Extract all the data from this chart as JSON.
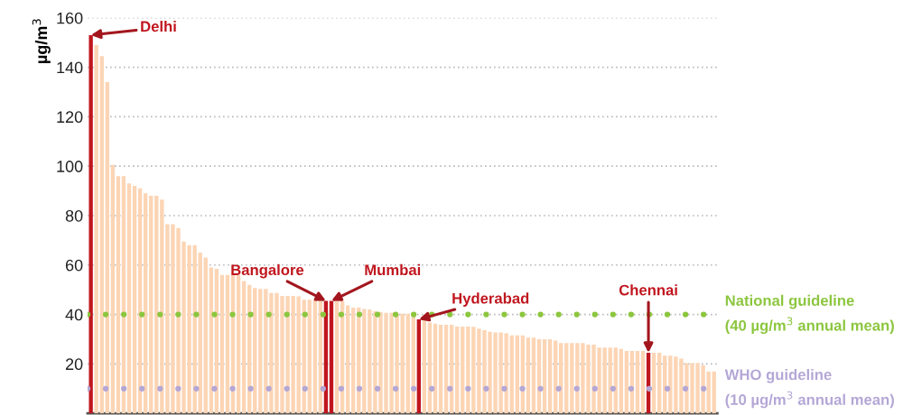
{
  "chart_data": {
    "type": "bar",
    "ylabel": "µg/m$^{3}$",
    "categories": [
      null,
      null,
      null,
      null,
      null,
      null,
      null,
      null,
      null,
      null,
      null,
      null,
      null,
      null,
      null,
      null,
      null,
      null,
      null,
      null,
      null,
      null,
      null,
      null,
      null,
      null,
      null,
      null,
      null,
      null,
      null,
      null,
      null,
      null,
      null,
      null,
      null,
      null,
      null,
      null,
      null,
      null,
      null,
      null,
      null,
      null,
      null,
      null,
      null,
      null,
      null,
      null,
      null,
      null,
      null,
      null,
      null,
      null,
      null,
      null,
      null,
      null,
      null,
      null,
      null,
      null,
      null,
      null,
      null,
      null,
      null,
      null,
      null,
      null,
      null,
      null,
      null,
      null,
      null,
      null,
      null,
      null,
      null,
      null,
      null,
      null,
      null,
      null,
      null,
      null,
      null,
      null,
      null,
      null,
      null,
      null,
      null,
      null,
      null,
      null,
      null,
      null,
      null,
      null,
      null,
      null,
      null,
      null,
      null,
      null,
      null,
      null,
      null,
      null,
      null
    ],
    "series": [
      {
        "color": "#fcd5b5",
        "values": [
          null,
          149,
          144.5,
          134,
          100.5,
          96,
          96,
          93,
          92,
          91,
          89,
          88,
          88,
          86.5,
          76.5,
          76.5,
          75,
          69.5,
          68,
          68,
          65,
          63,
          59,
          58.5,
          56,
          56,
          56,
          56,
          53.5,
          52,
          50.7,
          50.3,
          50.3,
          48.7,
          48.7,
          47.5,
          47.5,
          47.5,
          47.3,
          46,
          46,
          46,
          46,
          null,
          null,
          45.5,
          45.5,
          43.7,
          42.8,
          42.8,
          42.2,
          42,
          41.3,
          41,
          40.7,
          40.7,
          40.3,
          40.3,
          40.3,
          40.3,
          null,
          37.6,
          36.7,
          36.3,
          35.8,
          35.8,
          35.8,
          35.1,
          35.1,
          35.1,
          35,
          34.3,
          33.6,
          33,
          32.7,
          32.7,
          32.4,
          31.5,
          31.5,
          31.5,
          30.6,
          30.6,
          30,
          30,
          30,
          29.4,
          28.4,
          28.4,
          28.4,
          28.4,
          28.4,
          27.8,
          27.8,
          26.6,
          26.6,
          26.6,
          26.6,
          26.1,
          25.2,
          25.2,
          25.2,
          25.2,
          null,
          24.5,
          24.5,
          23.3,
          23.3,
          23,
          22.1,
          20.3,
          20.3,
          20.3,
          19.5,
          16.9,
          16.9
        ]
      },
      {
        "name": "Delhi",
        "color": "#c0161e",
        "values": [
          153,
          null,
          null,
          null,
          null,
          null,
          null,
          null,
          null,
          null,
          null,
          null,
          null,
          null,
          null,
          null,
          null,
          null,
          null,
          null,
          null,
          null,
          null,
          null,
          null,
          null,
          null,
          null,
          null,
          null,
          null,
          null,
          null,
          null,
          null,
          null,
          null,
          null,
          null,
          null,
          null,
          null,
          null,
          null,
          null,
          null,
          null,
          null,
          null,
          null,
          null,
          null,
          null,
          null,
          null,
          null,
          null,
          null,
          null,
          null,
          null,
          null,
          null,
          null,
          null,
          null,
          null,
          null,
          null,
          null,
          null,
          null,
          null,
          null,
          null,
          null,
          null,
          null,
          null,
          null,
          null,
          null,
          null,
          null,
          null,
          null,
          null,
          null,
          null,
          null,
          null,
          null,
          null,
          null,
          null,
          null,
          null,
          null,
          null,
          null,
          null,
          null,
          null,
          null,
          null,
          null,
          null,
          null,
          null,
          null,
          null,
          null,
          null,
          null,
          null
        ]
      },
      {
        "name": "Bangalore",
        "color": "#c0161e",
        "values": [
          null,
          null,
          null,
          null,
          null,
          null,
          null,
          null,
          null,
          null,
          null,
          null,
          null,
          null,
          null,
          null,
          null,
          null,
          null,
          null,
          null,
          null,
          null,
          null,
          null,
          null,
          null,
          null,
          null,
          null,
          null,
          null,
          null,
          null,
          null,
          null,
          null,
          null,
          null,
          null,
          null,
          null,
          null,
          45.5,
          null,
          null,
          null,
          null,
          null,
          null,
          null,
          null,
          null,
          null,
          null,
          null,
          null,
          null,
          null,
          null,
          null,
          null,
          null,
          null,
          null,
          null,
          null,
          null,
          null,
          null,
          null,
          null,
          null,
          null,
          null,
          null,
          null,
          null,
          null,
          null,
          null,
          null,
          null,
          null,
          null,
          null,
          null,
          null,
          null,
          null,
          null,
          null,
          null,
          null,
          null,
          null,
          null,
          null,
          null,
          null,
          null,
          null,
          null,
          null,
          null,
          null,
          null,
          null,
          null,
          null,
          null,
          null,
          null,
          null,
          null
        ]
      },
      {
        "name": "Mumbai",
        "color": "#c0161e",
        "values": [
          null,
          null,
          null,
          null,
          null,
          null,
          null,
          null,
          null,
          null,
          null,
          null,
          null,
          null,
          null,
          null,
          null,
          null,
          null,
          null,
          null,
          null,
          null,
          null,
          null,
          null,
          null,
          null,
          null,
          null,
          null,
          null,
          null,
          null,
          null,
          null,
          null,
          null,
          null,
          null,
          null,
          null,
          null,
          null,
          45.5,
          null,
          null,
          null,
          null,
          null,
          null,
          null,
          null,
          null,
          null,
          null,
          null,
          null,
          null,
          null,
          null,
          null,
          null,
          null,
          null,
          null,
          null,
          null,
          null,
          null,
          null,
          null,
          null,
          null,
          null,
          null,
          null,
          null,
          null,
          null,
          null,
          null,
          null,
          null,
          null,
          null,
          null,
          null,
          null,
          null,
          null,
          null,
          null,
          null,
          null,
          null,
          null,
          null,
          null,
          null,
          null,
          null,
          null,
          null,
          null,
          null,
          null,
          null,
          null,
          null,
          null,
          null,
          null,
          null,
          null
        ]
      },
      {
        "name": "Hyderabad",
        "color": "#c0161e",
        "values": [
          null,
          null,
          null,
          null,
          null,
          null,
          null,
          null,
          null,
          null,
          null,
          null,
          null,
          null,
          null,
          null,
          null,
          null,
          null,
          null,
          null,
          null,
          null,
          null,
          null,
          null,
          null,
          null,
          null,
          null,
          null,
          null,
          null,
          null,
          null,
          null,
          null,
          null,
          null,
          null,
          null,
          null,
          null,
          null,
          null,
          null,
          null,
          null,
          null,
          null,
          null,
          null,
          null,
          null,
          null,
          null,
          null,
          null,
          null,
          null,
          38,
          null,
          null,
          null,
          null,
          null,
          null,
          null,
          null,
          null,
          null,
          null,
          null,
          null,
          null,
          null,
          null,
          null,
          null,
          null,
          null,
          null,
          null,
          null,
          null,
          null,
          null,
          null,
          null,
          null,
          null,
          null,
          null,
          null,
          null,
          null,
          null,
          null,
          null,
          null,
          null,
          null,
          null,
          null,
          null,
          null,
          null,
          null,
          null,
          null,
          null,
          null,
          null,
          null,
          null
        ]
      },
      {
        "name": "Chennai",
        "color": "#c0161e",
        "values": [
          null,
          null,
          null,
          null,
          null,
          null,
          null,
          null,
          null,
          null,
          null,
          null,
          null,
          null,
          null,
          null,
          null,
          null,
          null,
          null,
          null,
          null,
          null,
          null,
          null,
          null,
          null,
          null,
          null,
          null,
          null,
          null,
          null,
          null,
          null,
          null,
          null,
          null,
          null,
          null,
          null,
          null,
          null,
          null,
          null,
          null,
          null,
          null,
          null,
          null,
          null,
          null,
          null,
          null,
          null,
          null,
          null,
          null,
          null,
          null,
          null,
          null,
          null,
          null,
          null,
          null,
          null,
          null,
          null,
          null,
          null,
          null,
          null,
          null,
          null,
          null,
          null,
          null,
          null,
          null,
          null,
          null,
          null,
          null,
          null,
          null,
          null,
          null,
          null,
          null,
          null,
          null,
          null,
          null,
          null,
          null,
          null,
          null,
          null,
          null,
          null,
          null,
          24.5,
          null,
          null,
          null,
          null,
          null,
          null,
          null,
          null,
          null,
          null,
          null,
          null
        ]
      }
    ],
    "ylim": [
      0,
      160
    ],
    "yticks": [
      20,
      40,
      60,
      80,
      100,
      120,
      140,
      160
    ],
    "grid": "y",
    "ref_lines": [
      {
        "axis": "y",
        "value": 40,
        "label": "National guideline\n(40 µg/m$^{3}$ annual mean)",
        "color": "#8cc63f",
        "line_style": "dotted"
      },
      {
        "axis": "y",
        "value": 10,
        "label": "WHO guideline\n(10 µg/m$^{3}$ annual mean)",
        "color": "#b4a7d6",
        "line_style": "dotted"
      }
    ]
  }
}
